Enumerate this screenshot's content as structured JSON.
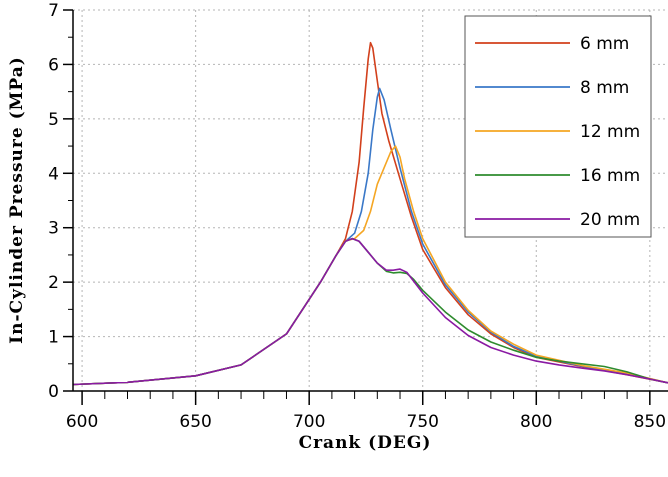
{
  "chart_data": {
    "type": "line",
    "xlabel": "Crank (DEG)",
    "ylabel": "In-Cylinder Pressure (MPa)",
    "xlim": [
      596,
      858
    ],
    "ylim": [
      0,
      7
    ],
    "xticks": [
      600,
      650,
      700,
      750,
      800,
      850
    ],
    "yticks": [
      0,
      1,
      2,
      3,
      4,
      5,
      6,
      7
    ],
    "grid": "dotted",
    "legend_position": "top-right",
    "series": [
      {
        "name": "6 mm",
        "color": "#d2401c",
        "x": [
          596,
          620,
          650,
          670,
          690,
          705,
          712,
          716,
          719,
          722,
          724,
          726,
          727,
          728,
          730,
          732,
          735,
          740,
          745,
          750,
          760,
          770,
          780,
          790,
          800,
          820,
          840,
          858
        ],
        "y": [
          0.12,
          0.16,
          0.28,
          0.48,
          1.05,
          2.0,
          2.5,
          2.8,
          3.3,
          4.2,
          5.2,
          6.1,
          6.4,
          6.3,
          5.7,
          5.1,
          4.6,
          3.9,
          3.2,
          2.6,
          1.9,
          1.4,
          1.05,
          0.8,
          0.62,
          0.45,
          0.3,
          0.15
        ]
      },
      {
        "name": "8 mm",
        "color": "#3a78c8",
        "x": [
          596,
          620,
          650,
          670,
          690,
          705,
          712,
          716,
          720,
          723,
          726,
          728,
          730,
          731,
          733,
          736,
          740,
          745,
          750,
          760,
          770,
          780,
          790,
          800,
          820,
          840,
          858
        ],
        "y": [
          0.12,
          0.16,
          0.28,
          0.48,
          1.05,
          2.0,
          2.5,
          2.75,
          2.9,
          3.3,
          4.0,
          4.8,
          5.4,
          5.56,
          5.35,
          4.8,
          4.1,
          3.3,
          2.7,
          1.95,
          1.45,
          1.08,
          0.82,
          0.64,
          0.46,
          0.31,
          0.15
        ]
      },
      {
        "name": "12 mm",
        "color": "#f5a623",
        "x": [
          596,
          620,
          650,
          670,
          690,
          705,
          712,
          716,
          720,
          724,
          727,
          730,
          733,
          736,
          738,
          740,
          742,
          746,
          750,
          760,
          770,
          780,
          790,
          800,
          820,
          840,
          858
        ],
        "y": [
          0.12,
          0.16,
          0.28,
          0.48,
          1.05,
          2.0,
          2.5,
          2.76,
          2.8,
          2.95,
          3.3,
          3.8,
          4.1,
          4.4,
          4.5,
          4.3,
          3.9,
          3.3,
          2.8,
          2.0,
          1.48,
          1.1,
          0.86,
          0.66,
          0.47,
          0.33,
          0.15
        ]
      },
      {
        "name": "16 mm",
        "color": "#2e8b2e",
        "x": [
          596,
          620,
          650,
          670,
          690,
          705,
          712,
          716,
          719,
          722,
          726,
          730,
          734,
          737,
          740,
          743,
          746,
          750,
          760,
          770,
          780,
          790,
          800,
          810,
          820,
          830,
          840,
          850,
          858
        ],
        "y": [
          0.12,
          0.16,
          0.28,
          0.48,
          1.05,
          2.0,
          2.5,
          2.75,
          2.8,
          2.75,
          2.55,
          2.35,
          2.2,
          2.17,
          2.18,
          2.16,
          2.05,
          1.85,
          1.45,
          1.12,
          0.9,
          0.75,
          0.62,
          0.55,
          0.5,
          0.45,
          0.35,
          0.22,
          0.15
        ]
      },
      {
        "name": "20 mm",
        "color": "#8a1aa3",
        "x": [
          596,
          620,
          650,
          670,
          690,
          705,
          712,
          716,
          719,
          722,
          726,
          730,
          734,
          737,
          740,
          743,
          746,
          750,
          760,
          770,
          780,
          790,
          800,
          810,
          820,
          830,
          840,
          850,
          858
        ],
        "y": [
          0.12,
          0.16,
          0.28,
          0.48,
          1.05,
          2.0,
          2.5,
          2.75,
          2.8,
          2.75,
          2.55,
          2.35,
          2.22,
          2.22,
          2.24,
          2.18,
          2.02,
          1.8,
          1.35,
          1.02,
          0.8,
          0.66,
          0.55,
          0.48,
          0.42,
          0.37,
          0.3,
          0.22,
          0.15
        ]
      }
    ]
  }
}
